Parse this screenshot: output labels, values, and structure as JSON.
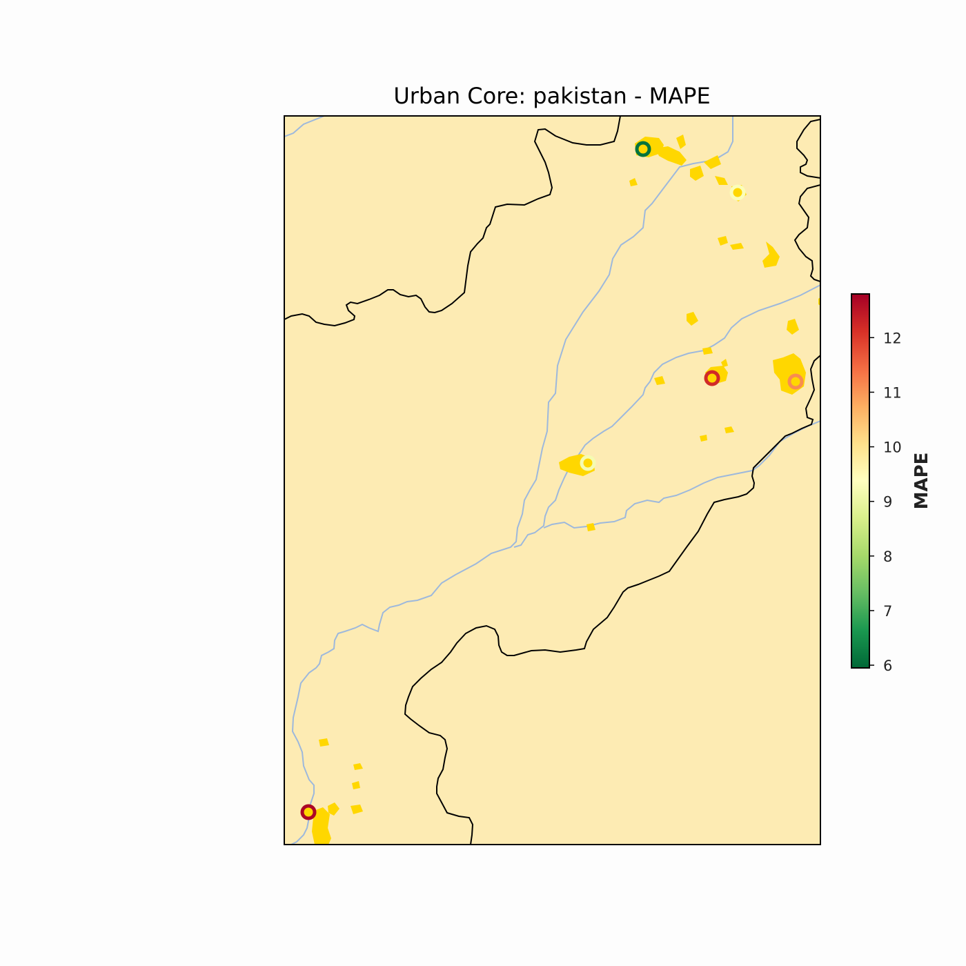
{
  "title": "Urban Core: pakistan - MAPE",
  "colorbar": {
    "label": "MAPE",
    "min": 5.95,
    "max": 12.8,
    "ticks": [
      "6",
      "7",
      "8",
      "9",
      "10",
      "11",
      "12"
    ],
    "colormap": "RdYlGn_r",
    "stops": [
      "#006837",
      "#1a9850",
      "#66bd63",
      "#a6d96a",
      "#d9ef8b",
      "#ffffbf",
      "#fee08b",
      "#fdae61",
      "#f46d43",
      "#d73027",
      "#a50026"
    ]
  },
  "colors": {
    "land": "#fdebb3",
    "rivers": "#9db8dc",
    "borders": "#000000",
    "urban": "#ffd700"
  },
  "chart_data": {
    "type": "scatter",
    "metric": "MAPE",
    "points": [
      {
        "value": 6.1
      },
      {
        "value": 9.3
      },
      {
        "value": 12.2
      },
      {
        "value": 11.1
      },
      {
        "value": 9.2
      },
      {
        "value": 12.7
      }
    ]
  }
}
